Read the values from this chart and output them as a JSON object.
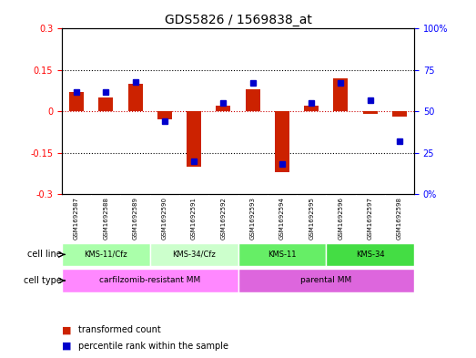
{
  "title": "GDS5826 / 1569838_at",
  "samples": [
    "GSM1692587",
    "GSM1692588",
    "GSM1692589",
    "GSM1692590",
    "GSM1692591",
    "GSM1692592",
    "GSM1692593",
    "GSM1692594",
    "GSM1692595",
    "GSM1692596",
    "GSM1692597",
    "GSM1692598"
  ],
  "transformed_count": [
    0.07,
    0.05,
    0.1,
    -0.03,
    -0.2,
    0.02,
    0.08,
    -0.22,
    0.02,
    0.12,
    -0.01,
    -0.02
  ],
  "percentile_rank": [
    62,
    62,
    68,
    44,
    20,
    55,
    67,
    18,
    55,
    67,
    57,
    32
  ],
  "ylim_left": [
    -0.3,
    0.3
  ],
  "ylim_right": [
    0,
    100
  ],
  "yticks_left": [
    -0.3,
    -0.15,
    0,
    0.15,
    0.3
  ],
  "yticks_right": [
    0,
    25,
    50,
    75,
    100
  ],
  "ytick_labels_left": [
    "-0.3",
    "-0.15",
    "0",
    "0.15",
    "0.3"
  ],
  "ytick_labels_right": [
    "0%",
    "25",
    "50",
    "75",
    "100%"
  ],
  "dotted_lines": [
    -0.15,
    0,
    0.15
  ],
  "cell_lines": [
    {
      "label": "KMS-11/Cfz",
      "start": 0,
      "end": 3,
      "color": "#aaffaa"
    },
    {
      "label": "KMS-34/Cfz",
      "start": 3,
      "end": 6,
      "color": "#ccffcc"
    },
    {
      "label": "KMS-11",
      "start": 6,
      "end": 9,
      "color": "#66ee66"
    },
    {
      "label": "KMS-34",
      "start": 9,
      "end": 12,
      "color": "#44dd44"
    }
  ],
  "cell_types": [
    {
      "label": "carfilzomib-resistant MM",
      "start": 0,
      "end": 6,
      "color": "#ff88ff"
    },
    {
      "label": "parental MM",
      "start": 6,
      "end": 12,
      "color": "#dd66dd"
    }
  ],
  "bar_color": "#cc2200",
  "dot_color": "#0000cc",
  "zero_line_color": "#cc0000",
  "background_color": "#ffffff",
  "plot_bg": "#ffffff",
  "grid_color": "#000000",
  "label_row1": "cell line",
  "label_row2": "cell type",
  "legend_bar": "transformed count",
  "legend_dot": "percentile rank within the sample"
}
